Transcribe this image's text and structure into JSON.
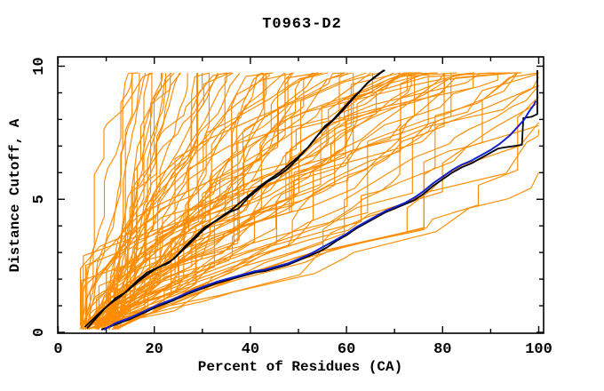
{
  "title": "T0963-D2",
  "chart_data": {
    "type": "line",
    "title": "T0963-D2",
    "xlabel": "Percent of Residues (CA)",
    "ylabel": "Distance Cutoff, A",
    "xlim": [
      0,
      100
    ],
    "ylim": [
      0,
      10
    ],
    "x_ticks_major": [
      0,
      20,
      40,
      60,
      80,
      100
    ],
    "x_ticks_minor": [
      10,
      30,
      50,
      70,
      90
    ],
    "y_ticks_major": [
      0,
      5,
      10
    ],
    "y_ticks_minor": [
      1,
      2,
      3,
      4,
      6,
      7,
      8,
      9
    ],
    "grid": false,
    "legend": "none",
    "colors": {
      "ensemble": "#ff8c00",
      "highlight_black": "#000000",
      "highlight_blue": "#1122cc",
      "frame": "#000000"
    },
    "series": [
      {
        "name": "highlight-model-black-1",
        "color": "#000000",
        "width": 1.8,
        "points": [
          [
            5.5,
            0.2
          ],
          [
            7,
            0.45
          ],
          [
            9,
            0.8
          ],
          [
            11,
            1.1
          ],
          [
            13,
            1.35
          ],
          [
            14.5,
            1.6
          ],
          [
            16.5,
            1.95
          ],
          [
            18.5,
            2.25
          ],
          [
            21,
            2.45
          ],
          [
            23,
            2.6
          ],
          [
            24.5,
            2.85
          ],
          [
            26.5,
            3.25
          ],
          [
            28.5,
            3.6
          ],
          [
            30.5,
            3.95
          ],
          [
            33,
            4.2
          ],
          [
            35.5,
            4.5
          ],
          [
            37.5,
            4.65
          ],
          [
            39.5,
            5.05
          ],
          [
            41.5,
            5.35
          ],
          [
            43.5,
            5.65
          ],
          [
            45.5,
            5.85
          ],
          [
            47.5,
            6.1
          ],
          [
            49.5,
            6.45
          ],
          [
            51,
            6.75
          ],
          [
            52.5,
            7.05
          ],
          [
            54,
            7.4
          ],
          [
            55.5,
            7.75
          ],
          [
            57,
            7.95
          ],
          [
            58.5,
            8.25
          ],
          [
            60,
            8.55
          ],
          [
            61.5,
            8.85
          ],
          [
            63,
            9.1
          ],
          [
            64.5,
            9.4
          ],
          [
            66,
            9.6
          ],
          [
            67.5,
            9.8
          ],
          [
            68,
            9.85
          ]
        ]
      },
      {
        "name": "highlight-model-black-2",
        "color": "#000000",
        "width": 1.8,
        "points": [
          [
            6,
            0.15
          ],
          [
            8,
            0.55
          ],
          [
            10,
            0.95
          ],
          [
            12,
            1.3
          ],
          [
            14,
            1.5
          ],
          [
            16,
            1.8
          ],
          [
            18,
            2.1
          ],
          [
            20,
            2.35
          ],
          [
            22,
            2.55
          ],
          [
            24,
            2.75
          ],
          [
            26,
            3.1
          ],
          [
            28,
            3.45
          ],
          [
            30,
            3.8
          ],
          [
            32,
            4.1
          ],
          [
            34,
            4.35
          ],
          [
            36,
            4.6
          ],
          [
            38,
            4.9
          ],
          [
            40,
            5.2
          ],
          [
            42,
            5.5
          ],
          [
            44,
            5.75
          ],
          [
            46,
            6.0
          ],
          [
            48,
            6.3
          ],
          [
            50,
            6.6
          ],
          [
            52,
            6.95
          ],
          [
            53.5,
            7.3
          ],
          [
            55,
            7.6
          ],
          [
            56.5,
            7.85
          ],
          [
            58,
            8.1
          ],
          [
            59.5,
            8.4
          ],
          [
            61,
            8.7
          ],
          [
            62.5,
            9.0
          ],
          [
            64,
            9.3
          ],
          [
            65.5,
            9.55
          ],
          [
            67,
            9.75
          ],
          [
            67.8,
            9.85
          ]
        ]
      },
      {
        "name": "highlight-model-black-3",
        "color": "#000000",
        "width": 1.8,
        "points": [
          [
            9,
            0.1
          ],
          [
            12,
            0.3
          ],
          [
            15,
            0.5
          ],
          [
            18,
            0.75
          ],
          [
            21,
            1.0
          ],
          [
            24,
            1.2
          ],
          [
            27,
            1.45
          ],
          [
            30,
            1.65
          ],
          [
            33,
            1.85
          ],
          [
            36,
            2.0
          ],
          [
            39,
            2.15
          ],
          [
            41,
            2.25
          ],
          [
            43,
            2.3
          ],
          [
            45,
            2.4
          ],
          [
            48,
            2.55
          ],
          [
            50,
            2.7
          ],
          [
            52,
            2.85
          ],
          [
            54,
            3.0
          ],
          [
            56,
            3.2
          ],
          [
            58,
            3.45
          ],
          [
            60,
            3.65
          ],
          [
            62,
            3.9
          ],
          [
            64,
            4.1
          ],
          [
            66,
            4.3
          ],
          [
            68,
            4.5
          ],
          [
            70,
            4.65
          ],
          [
            72,
            4.8
          ],
          [
            74,
            4.95
          ],
          [
            76,
            5.2
          ],
          [
            78,
            5.5
          ],
          [
            80,
            5.75
          ],
          [
            82,
            6.0
          ],
          [
            84,
            6.2
          ],
          [
            86,
            6.35
          ],
          [
            88,
            6.55
          ],
          [
            90,
            6.75
          ],
          [
            91.5,
            6.9
          ],
          [
            93,
            6.95
          ],
          [
            95,
            7.0
          ],
          [
            96.5,
            7.05
          ],
          [
            96.8,
            8.05
          ],
          [
            98.5,
            8.1
          ],
          [
            99.7,
            8.2
          ],
          [
            99.7,
            9.85
          ]
        ]
      },
      {
        "name": "highlight-model-blue",
        "color": "#1122cc",
        "width": 2.0,
        "points": [
          [
            9.5,
            0.1
          ],
          [
            12,
            0.35
          ],
          [
            15,
            0.55
          ],
          [
            18,
            0.8
          ],
          [
            21,
            1.05
          ],
          [
            24,
            1.25
          ],
          [
            27,
            1.5
          ],
          [
            30,
            1.7
          ],
          [
            33,
            1.9
          ],
          [
            36,
            2.05
          ],
          [
            39,
            2.2
          ],
          [
            41,
            2.3
          ],
          [
            43,
            2.35
          ],
          [
            45,
            2.45
          ],
          [
            48,
            2.6
          ],
          [
            50,
            2.75
          ],
          [
            52,
            2.9
          ],
          [
            54,
            3.1
          ],
          [
            56,
            3.3
          ],
          [
            58,
            3.5
          ],
          [
            60,
            3.7
          ],
          [
            62,
            3.95
          ],
          [
            64,
            4.15
          ],
          [
            66,
            4.35
          ],
          [
            68,
            4.55
          ],
          [
            70,
            4.7
          ],
          [
            72,
            4.85
          ],
          [
            74,
            5.05
          ],
          [
            76,
            5.3
          ],
          [
            78,
            5.6
          ],
          [
            80,
            5.85
          ],
          [
            82,
            6.1
          ],
          [
            84,
            6.3
          ],
          [
            86,
            6.45
          ],
          [
            88,
            6.65
          ],
          [
            90,
            6.85
          ],
          [
            92,
            7.1
          ],
          [
            94,
            7.4
          ],
          [
            95.5,
            7.7
          ],
          [
            97,
            8.0
          ],
          [
            98,
            8.3
          ],
          [
            99,
            8.55
          ],
          [
            99.4,
            8.7
          ]
        ]
      }
    ],
    "ensemble": {
      "name": "server-models-orange",
      "color": "#ff8c00",
      "width": 1.15,
      "count": 95,
      "seed": 1337,
      "start_x_range": [
        4.5,
        13
      ],
      "exit_x_range": [
        18,
        135
      ],
      "exit_skew": 1.2,
      "y_start": 0.1,
      "y_top": 9.75
    }
  }
}
